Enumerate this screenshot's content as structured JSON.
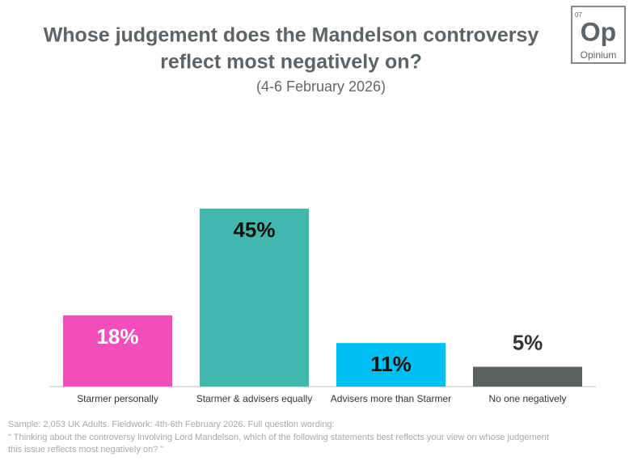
{
  "chart_data": {
    "type": "bar",
    "title": [
      "Whose judgement does the Mandelson controversy",
      "reflect most negatively on?"
    ],
    "subtitle": "(4-6 February 2026)",
    "categories": [
      "Starmer personally",
      "Starmer & advisers equally",
      "Advisers more than Starmer",
      "No one negatively"
    ],
    "values": [
      18,
      45,
      11,
      5
    ],
    "value_labels": [
      "18%",
      "45%",
      "11%",
      "5%"
    ],
    "colors": [
      "#f24fbd",
      "#40b8ad",
      "#00bdf2",
      "#5a605c"
    ],
    "footnote": [
      "Sample: 2,053 UK Adults. Fieldwork: 4th-6th February 2026. Full question wording:",
      "\" Thinking about the controversy involving Lord Mandelson, which of the following statements best reflects your view on whose judgement",
      "this issue reflects most negatively on? \""
    ]
  },
  "logo": {
    "number": "07",
    "symbol": "Op",
    "name": "Opinium"
  }
}
